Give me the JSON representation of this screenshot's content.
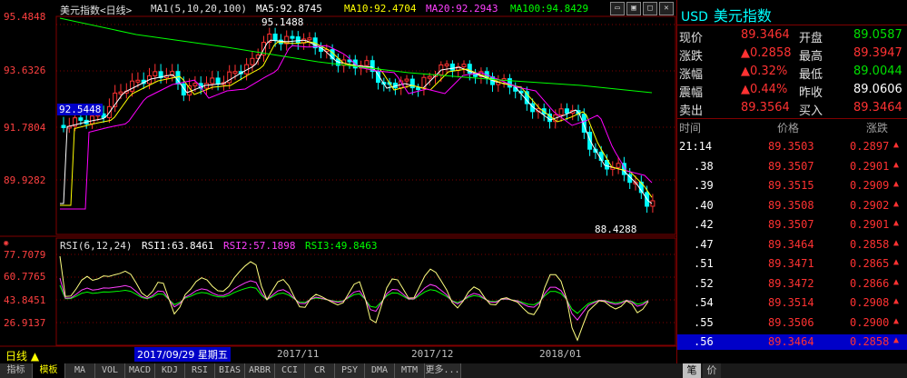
{
  "header": {
    "name": "美元指数<日线>",
    "ma_label": "MA1(5,10,20,100)",
    "ma5": "MA5:92.8745",
    "ma10": "MA10:92.4704",
    "ma20": "MA20:92.2943",
    "ma100": "MA100:94.8429"
  },
  "price_axis": [
    "95.4848",
    "93.6326",
    "91.7804",
    "89.9282"
  ],
  "annotations": {
    "high": "95.1488",
    "low": "88.4288",
    "left_price": "92.5448"
  },
  "rsi": {
    "label": "RSI(6,12,24)",
    "rsi1": "RSI1:63.8461",
    "rsi2": "RSI2:57.1898",
    "rsi3": "RSI3:49.8463",
    "axis": [
      "77.7079",
      "60.7765",
      "43.8451",
      "26.9137"
    ]
  },
  "time_axis": {
    "period": "日线",
    "cursor_date": "2017/09/29 星期五",
    "months": [
      "2017/11",
      "2017/12",
      "2018/01"
    ]
  },
  "quote": {
    "code": "USD",
    "name": "美元指数",
    "rows": [
      {
        "l1": "现价",
        "v1": "89.3464",
        "l2": "开盘",
        "v2": "89.0587"
      },
      {
        "l1": "涨跌",
        "v1": "▲0.2858",
        "l2": "最高",
        "v2": "89.3947"
      },
      {
        "l1": "涨幅",
        "v1": "▲0.32%",
        "l2": "最低",
        "v2": "89.0044"
      },
      {
        "l1": "震幅",
        "v1": "▲0.44%",
        "l2": "昨收",
        "v2": "89.0606"
      },
      {
        "l1": "卖出",
        "v1": "89.3564",
        "l2": "买入",
        "v2": "89.3464"
      }
    ]
  },
  "ticks": {
    "headers": [
      "时间",
      "价格",
      "涨跌"
    ],
    "rows": [
      [
        "21:14",
        "89.3503",
        "0.2897"
      ],
      [
        ".38",
        "89.3507",
        "0.2901"
      ],
      [
        ".39",
        "89.3515",
        "0.2909"
      ],
      [
        ".40",
        "89.3508",
        "0.2902"
      ],
      [
        ".42",
        "89.3507",
        "0.2901"
      ],
      [
        ".47",
        "89.3464",
        "0.2858"
      ],
      [
        ".51",
        "89.3471",
        "0.2865"
      ],
      [
        ".52",
        "89.3472",
        "0.2866"
      ],
      [
        ".54",
        "89.3514",
        "0.2908"
      ],
      [
        ".55",
        "89.3506",
        "0.2900"
      ],
      [
        ".56",
        "89.3464",
        "0.2858"
      ]
    ]
  },
  "bottom_tabs": [
    "指标",
    "模板",
    "MA",
    "VOL",
    "MACD",
    "KDJ",
    "RSI",
    "BIAS",
    "ARBR",
    "CCI",
    "CR",
    "PSY",
    "DMA",
    "MTM",
    "更多..."
  ],
  "panel_tabs": [
    "笔",
    "价"
  ],
  "colors": {
    "up": "#ff3232",
    "down": "#00ffff",
    "ma5": "#ffffff",
    "ma10": "#ffff00",
    "ma20": "#ff00ff",
    "ma100": "#00ff00"
  }
}
